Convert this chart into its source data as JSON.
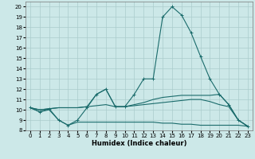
{
  "xlabel": "Humidex (Indice chaleur)",
  "xlim": [
    -0.5,
    23.5
  ],
  "ylim": [
    8,
    20.5
  ],
  "yticks": [
    8,
    9,
    10,
    11,
    12,
    13,
    14,
    15,
    16,
    17,
    18,
    19,
    20
  ],
  "xticks": [
    0,
    1,
    2,
    3,
    4,
    5,
    6,
    7,
    8,
    9,
    10,
    11,
    12,
    13,
    14,
    15,
    16,
    17,
    18,
    19,
    20,
    21,
    22,
    23
  ],
  "bg_color": "#cce8e8",
  "grid_color": "#aacccc",
  "line_color": "#1a6b6b",
  "curve_main": [
    10.2,
    9.8,
    10.1,
    9.0,
    8.5,
    9.0,
    10.2,
    11.5,
    12.0,
    10.3,
    10.3,
    11.5,
    13.0,
    13.0,
    19.0,
    20.0,
    19.2,
    17.5,
    15.2,
    13.0,
    11.5,
    10.5,
    9.0,
    8.4
  ],
  "curve2": [
    10.2,
    10.0,
    10.1,
    10.2,
    10.2,
    10.2,
    10.3,
    11.5,
    12.0,
    10.3,
    10.3,
    10.5,
    10.7,
    11.0,
    11.2,
    11.3,
    11.4,
    11.4,
    11.4,
    11.4,
    11.5,
    10.5,
    9.0,
    8.4
  ],
  "curve3": [
    10.2,
    10.0,
    10.1,
    10.2,
    10.2,
    10.2,
    10.3,
    10.4,
    10.5,
    10.3,
    10.3,
    10.4,
    10.5,
    10.6,
    10.7,
    10.8,
    10.9,
    11.0,
    11.0,
    10.8,
    10.5,
    10.3,
    9.0,
    8.4
  ],
  "curve4": [
    10.2,
    9.8,
    10.0,
    9.0,
    8.5,
    8.8,
    8.8,
    8.8,
    8.8,
    8.8,
    8.8,
    8.8,
    8.8,
    8.8,
    8.7,
    8.7,
    8.6,
    8.6,
    8.5,
    8.5,
    8.5,
    8.5,
    8.5,
    8.4
  ]
}
